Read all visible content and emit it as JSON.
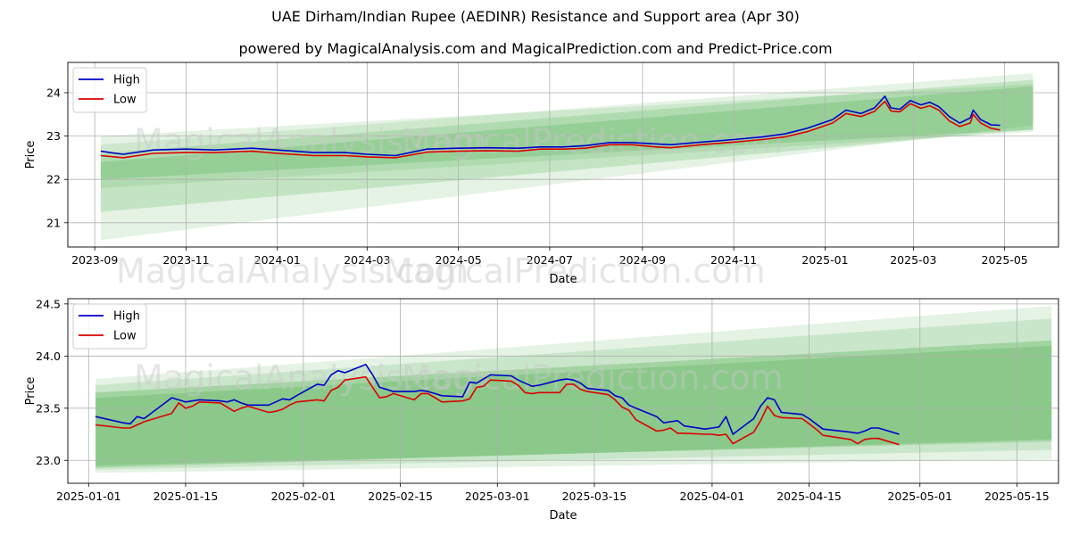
{
  "title": "UAE Dirham/Indian Rupee (AEDINR) Resistance and Support area (Apr 30)",
  "subtitle": "powered by MagicalAnalysis.com and MagicalPrediction.com and Predict-Price.com",
  "watermarks": [
    "MagicalAnalysis.com",
    "MagicalPrediction.com"
  ],
  "colors": {
    "high": "#0000cc",
    "low": "#dd0000",
    "band": "#2ca02c",
    "grid": "#b0b0b0"
  },
  "chart_data": [
    {
      "type": "line",
      "xlabel": "Date",
      "ylabel": "Price",
      "xlim": [
        "2023-08-14",
        "2025-06-06"
      ],
      "ylim": [
        20.44,
        24.7
      ],
      "x_ticks": [
        "2023-09",
        "2023-11",
        "2024-01",
        "2024-03",
        "2024-05",
        "2024-07",
        "2024-09",
        "2024-11",
        "2025-01",
        "2025-03",
        "2025-05"
      ],
      "y_ticks": [
        "21",
        "22",
        "23",
        "24"
      ],
      "legend": {
        "position": "top-left",
        "entries": [
          "High",
          "Low"
        ]
      },
      "grid": true,
      "bands": [
        {
          "x": [
            "2023-09-05",
            "2025-05-20"
          ],
          "upper": [
            23.0,
            24.2
          ],
          "lower": [
            21.8,
            23.1
          ],
          "opacity": 0.12
        },
        {
          "x": [
            "2023-09-05",
            "2025-05-20"
          ],
          "upper": [
            22.8,
            24.45
          ],
          "lower": [
            20.6,
            23.25
          ],
          "opacity": 0.12
        },
        {
          "x": [
            "2023-09-05",
            "2025-05-20"
          ],
          "upper": [
            22.6,
            24.3
          ],
          "lower": [
            21.25,
            23.15
          ],
          "opacity": 0.18
        },
        {
          "x": [
            "2023-09-05",
            "2025-05-20"
          ],
          "upper": [
            22.4,
            24.15
          ],
          "lower": [
            22.0,
            23.15
          ],
          "opacity": 0.2
        }
      ],
      "series": [
        {
          "name": "High",
          "x": [
            "2023-09-05",
            "2023-09-20",
            "2023-10-10",
            "2023-11-01",
            "2023-11-20",
            "2023-12-15",
            "2024-01-01",
            "2024-01-25",
            "2024-02-15",
            "2024-03-01",
            "2024-03-20",
            "2024-04-10",
            "2024-05-01",
            "2024-05-20",
            "2024-06-10",
            "2024-06-25",
            "2024-07-10",
            "2024-07-25",
            "2024-08-10",
            "2024-08-25",
            "2024-09-10",
            "2024-09-20",
            "2024-10-10",
            "2024-11-01",
            "2024-11-20",
            "2024-12-05",
            "2024-12-20",
            "2025-01-06",
            "2025-01-15",
            "2025-01-25",
            "2025-02-03",
            "2025-02-10",
            "2025-02-14",
            "2025-02-20",
            "2025-02-27",
            "2025-03-06",
            "2025-03-12",
            "2025-03-18",
            "2025-03-25",
            "2025-04-01",
            "2025-04-08",
            "2025-04-10",
            "2025-04-15",
            "2025-04-22",
            "2025-04-28"
          ],
          "values": [
            22.65,
            22.58,
            22.68,
            22.7,
            22.68,
            22.72,
            22.68,
            22.62,
            22.62,
            22.58,
            22.55,
            22.7,
            22.72,
            22.73,
            22.72,
            22.75,
            22.75,
            22.78,
            22.85,
            22.85,
            22.82,
            22.8,
            22.86,
            22.92,
            22.98,
            23.05,
            23.18,
            23.38,
            23.6,
            23.52,
            23.65,
            23.92,
            23.65,
            23.62,
            23.82,
            23.72,
            23.78,
            23.68,
            23.45,
            23.3,
            23.42,
            23.6,
            23.38,
            23.26,
            23.25
          ]
        },
        {
          "name": "Low",
          "x": [
            "2023-09-05",
            "2023-09-20",
            "2023-10-10",
            "2023-11-01",
            "2023-11-20",
            "2023-12-15",
            "2024-01-01",
            "2024-01-25",
            "2024-02-15",
            "2024-03-01",
            "2024-03-20",
            "2024-04-10",
            "2024-05-01",
            "2024-05-20",
            "2024-06-10",
            "2024-06-25",
            "2024-07-10",
            "2024-07-25",
            "2024-08-10",
            "2024-08-25",
            "2024-09-10",
            "2024-09-20",
            "2024-10-10",
            "2024-11-01",
            "2024-11-20",
            "2024-12-05",
            "2024-12-20",
            "2025-01-06",
            "2025-01-15",
            "2025-01-25",
            "2025-02-03",
            "2025-02-10",
            "2025-02-14",
            "2025-02-20",
            "2025-02-27",
            "2025-03-06",
            "2025-03-12",
            "2025-03-18",
            "2025-03-25",
            "2025-04-01",
            "2025-04-08",
            "2025-04-10",
            "2025-04-15",
            "2025-04-22",
            "2025-04-28"
          ],
          "values": [
            22.55,
            22.5,
            22.6,
            22.62,
            22.62,
            22.65,
            22.6,
            22.55,
            22.55,
            22.52,
            22.5,
            22.63,
            22.65,
            22.66,
            22.65,
            22.7,
            22.7,
            22.72,
            22.8,
            22.8,
            22.75,
            22.73,
            22.8,
            22.86,
            22.92,
            22.98,
            23.1,
            23.3,
            23.52,
            23.45,
            23.57,
            23.8,
            23.58,
            23.56,
            23.75,
            23.64,
            23.7,
            23.6,
            23.35,
            23.22,
            23.3,
            23.5,
            23.3,
            23.18,
            23.14
          ]
        }
      ]
    },
    {
      "type": "line",
      "xlabel": "Date",
      "ylabel": "Price",
      "xlim": [
        "2024-12-29",
        "2025-05-21"
      ],
      "ylim": [
        22.78,
        24.55
      ],
      "x_ticks": [
        "2025-01-01",
        "2025-01-15",
        "2025-02-01",
        "2025-02-15",
        "2025-03-01",
        "2025-03-15",
        "2025-04-01",
        "2025-04-15",
        "2025-05-01",
        "2025-05-15"
      ],
      "y_ticks": [
        "23.0",
        "23.5",
        "24.0",
        "24.5"
      ],
      "legend": {
        "position": "top-left",
        "entries": [
          "High",
          "Low"
        ]
      },
      "grid": true,
      "bands": [
        {
          "x": [
            "2025-01-02",
            "2025-05-20"
          ],
          "upper": [
            23.78,
            24.48
          ],
          "lower": [
            22.88,
            23.01
          ],
          "opacity": 0.12
        },
        {
          "x": [
            "2025-01-02",
            "2025-05-20"
          ],
          "upper": [
            23.72,
            24.36
          ],
          "lower": [
            22.91,
            23.1
          ],
          "opacity": 0.15
        },
        {
          "x": [
            "2025-01-02",
            "2025-05-20"
          ],
          "upper": [
            23.65,
            24.15
          ],
          "lower": [
            22.93,
            23.2
          ],
          "opacity": 0.25
        },
        {
          "x": [
            "2025-01-02",
            "2025-05-20"
          ],
          "upper": [
            23.6,
            24.1
          ],
          "lower": [
            22.95,
            23.18
          ],
          "opacity": 0.2
        }
      ],
      "series": [
        {
          "name": "High",
          "x": [
            "2025-01-02",
            "2025-01-06",
            "2025-01-07",
            "2025-01-08",
            "2025-01-09",
            "2025-01-13",
            "2025-01-14",
            "2025-01-15",
            "2025-01-16",
            "2025-01-17",
            "2025-01-20",
            "2025-01-21",
            "2025-01-22",
            "2025-01-23",
            "2025-01-24",
            "2025-01-27",
            "2025-01-28",
            "2025-01-29",
            "2025-01-30",
            "2025-01-31",
            "2025-02-03",
            "2025-02-04",
            "2025-02-05",
            "2025-02-06",
            "2025-02-07",
            "2025-02-10",
            "2025-02-11",
            "2025-02-12",
            "2025-02-13",
            "2025-02-14",
            "2025-02-17",
            "2025-02-18",
            "2025-02-19",
            "2025-02-20",
            "2025-02-21",
            "2025-02-24",
            "2025-02-25",
            "2025-02-26",
            "2025-02-27",
            "2025-02-28",
            "2025-03-03",
            "2025-03-04",
            "2025-03-05",
            "2025-03-06",
            "2025-03-07",
            "2025-03-10",
            "2025-03-11",
            "2025-03-12",
            "2025-03-13",
            "2025-03-14",
            "2025-03-17",
            "2025-03-18",
            "2025-03-19",
            "2025-03-20",
            "2025-03-21",
            "2025-03-24",
            "2025-03-25",
            "2025-03-26",
            "2025-03-27",
            "2025-03-28",
            "2025-03-31",
            "2025-04-01",
            "2025-04-02",
            "2025-04-03",
            "2025-04-04",
            "2025-04-07",
            "2025-04-08",
            "2025-04-09",
            "2025-04-10",
            "2025-04-11",
            "2025-04-14",
            "2025-04-15",
            "2025-04-16",
            "2025-04-17",
            "2025-04-21",
            "2025-04-22",
            "2025-04-23",
            "2025-04-24",
            "2025-04-25",
            "2025-04-28"
          ],
          "values": [
            23.42,
            23.36,
            23.35,
            23.42,
            23.4,
            23.6,
            23.58,
            23.56,
            23.57,
            23.58,
            23.57,
            23.56,
            23.58,
            23.55,
            23.53,
            23.53,
            23.56,
            23.59,
            23.58,
            23.62,
            23.73,
            23.72,
            23.82,
            23.86,
            23.84,
            23.92,
            23.82,
            23.7,
            23.68,
            23.66,
            23.66,
            23.67,
            23.66,
            23.64,
            23.62,
            23.61,
            23.75,
            23.74,
            23.78,
            23.82,
            23.81,
            23.77,
            23.74,
            23.71,
            23.72,
            23.77,
            23.78,
            23.77,
            23.74,
            23.69,
            23.67,
            23.62,
            23.6,
            23.53,
            23.5,
            23.42,
            23.36,
            23.37,
            23.38,
            23.33,
            23.3,
            23.31,
            23.32,
            23.42,
            23.25,
            23.4,
            23.52,
            23.6,
            23.58,
            23.46,
            23.44,
            23.4,
            23.35,
            23.3,
            23.27,
            23.26,
            23.28,
            23.31,
            23.31,
            23.25
          ]
        },
        {
          "name": "Low",
          "x": [
            "2025-01-02",
            "2025-01-06",
            "2025-01-07",
            "2025-01-08",
            "2025-01-09",
            "2025-01-13",
            "2025-01-14",
            "2025-01-15",
            "2025-01-16",
            "2025-01-17",
            "2025-01-20",
            "2025-01-21",
            "2025-01-22",
            "2025-01-23",
            "2025-01-24",
            "2025-01-27",
            "2025-01-28",
            "2025-01-29",
            "2025-01-30",
            "2025-01-31",
            "2025-02-03",
            "2025-02-04",
            "2025-02-05",
            "2025-02-06",
            "2025-02-07",
            "2025-02-10",
            "2025-02-11",
            "2025-02-12",
            "2025-02-13",
            "2025-02-14",
            "2025-02-17",
            "2025-02-18",
            "2025-02-19",
            "2025-02-20",
            "2025-02-21",
            "2025-02-24",
            "2025-02-25",
            "2025-02-26",
            "2025-02-27",
            "2025-02-28",
            "2025-03-03",
            "2025-03-04",
            "2025-03-05",
            "2025-03-06",
            "2025-03-07",
            "2025-03-10",
            "2025-03-11",
            "2025-03-12",
            "2025-03-13",
            "2025-03-14",
            "2025-03-17",
            "2025-03-18",
            "2025-03-19",
            "2025-03-20",
            "2025-03-21",
            "2025-03-24",
            "2025-03-25",
            "2025-03-26",
            "2025-03-27",
            "2025-03-28",
            "2025-03-31",
            "2025-04-01",
            "2025-04-02",
            "2025-04-03",
            "2025-04-04",
            "2025-04-07",
            "2025-04-08",
            "2025-04-09",
            "2025-04-10",
            "2025-04-11",
            "2025-04-14",
            "2025-04-15",
            "2025-04-16",
            "2025-04-17",
            "2025-04-21",
            "2025-04-22",
            "2025-04-23",
            "2025-04-24",
            "2025-04-25",
            "2025-04-28"
          ],
          "values": [
            23.34,
            23.31,
            23.31,
            23.34,
            23.37,
            23.45,
            23.55,
            23.5,
            23.52,
            23.56,
            23.55,
            23.51,
            23.47,
            23.5,
            23.52,
            23.46,
            23.47,
            23.49,
            23.53,
            23.56,
            23.58,
            23.57,
            23.67,
            23.7,
            23.77,
            23.8,
            23.7,
            23.6,
            23.61,
            23.64,
            23.58,
            23.64,
            23.64,
            23.6,
            23.56,
            23.57,
            23.59,
            23.7,
            23.71,
            23.77,
            23.76,
            23.72,
            23.65,
            23.64,
            23.65,
            23.65,
            23.73,
            23.73,
            23.68,
            23.66,
            23.63,
            23.58,
            23.51,
            23.48,
            23.39,
            23.28,
            23.29,
            23.31,
            23.26,
            23.26,
            23.25,
            23.25,
            23.24,
            23.25,
            23.16,
            23.27,
            23.38,
            23.52,
            23.43,
            23.41,
            23.4,
            23.35,
            23.3,
            23.24,
            23.2,
            23.16,
            23.2,
            23.21,
            23.21,
            23.15
          ]
        }
      ]
    }
  ]
}
